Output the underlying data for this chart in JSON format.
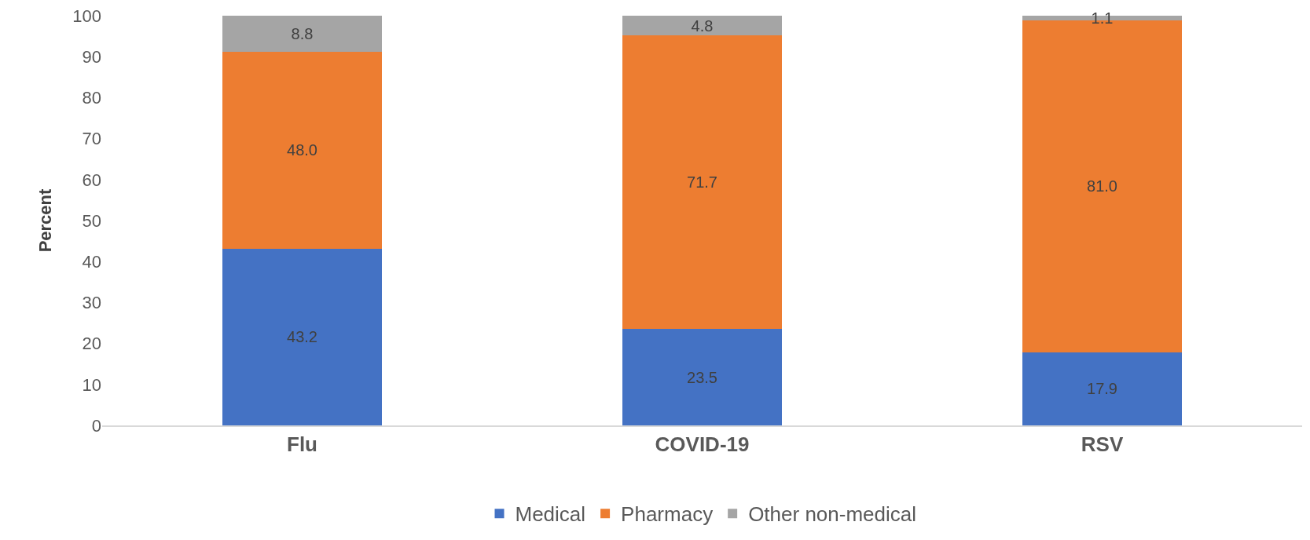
{
  "chart_data": {
    "type": "bar",
    "stacked": true,
    "ylabel": "Percent",
    "categories": [
      "Flu",
      "COVID-19",
      "RSV"
    ],
    "series": [
      {
        "name": "Medical",
        "color": "#4472c4",
        "values": [
          43.2,
          23.5,
          17.9
        ],
        "value_labels": [
          "43.2",
          "23.5",
          "17.9"
        ]
      },
      {
        "name": "Pharmacy",
        "color": "#ed7d31",
        "values": [
          48.0,
          71.7,
          81.0
        ],
        "value_labels": [
          "48.0",
          "71.7",
          "81.0"
        ]
      },
      {
        "name": "Other non-medical",
        "color": "#a5a5a5",
        "values": [
          8.8,
          4.8,
          1.1
        ],
        "value_labels": [
          "8.8",
          "4.8",
          "1.1"
        ]
      }
    ],
    "ylim": [
      0,
      100
    ],
    "yticks": [
      0,
      10,
      20,
      30,
      40,
      50,
      60,
      70,
      80,
      90,
      100
    ],
    "grid": false,
    "legend": "bottom"
  }
}
